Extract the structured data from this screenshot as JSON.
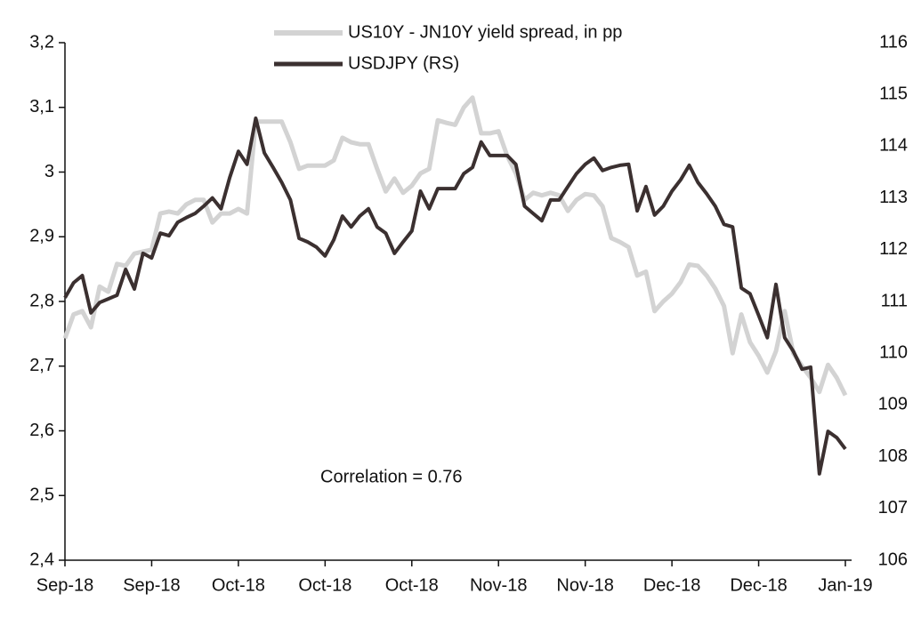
{
  "chart_data": {
    "type": "line",
    "annotation": "Correlation = 0.76",
    "categories": [
      "Sep-18",
      null,
      null,
      null,
      null,
      null,
      null,
      null,
      null,
      null,
      "Sep-18",
      null,
      null,
      null,
      null,
      null,
      null,
      null,
      null,
      null,
      "Oct-18",
      null,
      null,
      null,
      null,
      null,
      null,
      null,
      null,
      null,
      "Oct-18",
      null,
      null,
      null,
      null,
      null,
      null,
      null,
      null,
      null,
      "Oct-18",
      null,
      null,
      null,
      null,
      null,
      null,
      null,
      null,
      null,
      "Nov-18",
      null,
      null,
      null,
      null,
      null,
      null,
      null,
      null,
      null,
      "Nov-18",
      null,
      null,
      null,
      null,
      null,
      null,
      null,
      null,
      null,
      "Dec-18",
      null,
      null,
      null,
      null,
      null,
      null,
      null,
      null,
      null,
      "Dec-18",
      null,
      null,
      null,
      null,
      null,
      null,
      null,
      null,
      null,
      "Jan-19"
    ],
    "series": [
      {
        "name": "US10Y - JN10Y yield spread, in pp",
        "color": "#d3d3d3",
        "axis": "y",
        "values": [
          2.743,
          2.78,
          2.785,
          2.76,
          2.823,
          2.815,
          2.858,
          2.855,
          2.874,
          2.877,
          2.88,
          2.936,
          2.939,
          2.936,
          2.95,
          2.957,
          2.957,
          2.922,
          2.936,
          2.936,
          2.943,
          2.936,
          3.078,
          3.078,
          3.078,
          3.078,
          3.046,
          3.005,
          3.01,
          3.01,
          3.01,
          3.018,
          3.053,
          3.046,
          3.043,
          3.043,
          3.005,
          2.97,
          2.99,
          2.968,
          2.979,
          2.998,
          3.005,
          3.08,
          3.076,
          3.073,
          3.1,
          3.115,
          3.06,
          3.06,
          3.063,
          3.025,
          2.998,
          2.957,
          2.968,
          2.964,
          2.968,
          2.964,
          2.94,
          2.957,
          2.966,
          2.964,
          2.947,
          2.898,
          2.892,
          2.884,
          2.84,
          2.846,
          2.785,
          2.8,
          2.812,
          2.83,
          2.857,
          2.855,
          2.84,
          2.82,
          2.793,
          2.72,
          2.78,
          2.737,
          2.716,
          2.69,
          2.723,
          2.785,
          2.72,
          2.7,
          2.682,
          2.66,
          2.702,
          2.682,
          2.655
        ]
      },
      {
        "name": "USDJPY (RS)",
        "color": "#3b3030",
        "axis": "y2",
        "values": [
          111.07,
          111.36,
          111.5,
          110.78,
          110.98,
          111.05,
          111.12,
          111.62,
          111.24,
          111.93,
          111.84,
          112.32,
          112.27,
          112.53,
          112.62,
          112.7,
          112.84,
          113.0,
          112.79,
          113.39,
          113.9,
          113.65,
          114.54,
          113.87,
          113.59,
          113.3,
          112.96,
          112.22,
          112.15,
          112.05,
          111.88,
          112.19,
          112.65,
          112.44,
          112.65,
          112.79,
          112.44,
          112.32,
          111.93,
          112.15,
          112.36,
          113.13,
          112.79,
          113.18,
          113.18,
          113.18,
          113.47,
          113.59,
          114.08,
          113.82,
          113.82,
          113.82,
          113.65,
          112.84,
          112.7,
          112.56,
          112.96,
          112.96,
          113.22,
          113.47,
          113.65,
          113.77,
          113.53,
          113.59,
          113.63,
          113.65,
          112.75,
          113.22,
          112.67,
          112.84,
          113.13,
          113.35,
          113.63,
          113.3,
          113.08,
          112.84,
          112.49,
          112.44,
          111.26,
          111.15,
          110.73,
          110.3,
          111.33,
          110.3,
          110.04,
          109.69,
          109.73,
          107.67,
          108.49,
          108.37,
          108.15
        ]
      }
    ],
    "ylim": [
      2.4,
      3.2
    ],
    "yticks": [
      {
        "value": 2.4,
        "label": "2,4"
      },
      {
        "value": 2.5,
        "label": "2,5"
      },
      {
        "value": 2.6,
        "label": "2,6"
      },
      {
        "value": 2.7,
        "label": "2,7"
      },
      {
        "value": 2.8,
        "label": "2,8"
      },
      {
        "value": 2.9,
        "label": "2,9"
      },
      3,
      {
        "value": 3.1,
        "label": "3,1"
      },
      {
        "value": 3.2,
        "label": "3,2"
      }
    ],
    "y2lim": [
      106,
      116
    ],
    "y2ticks": [
      106,
      107,
      108,
      109,
      110,
      111,
      112,
      113,
      114,
      115,
      116
    ],
    "legend": "top"
  }
}
